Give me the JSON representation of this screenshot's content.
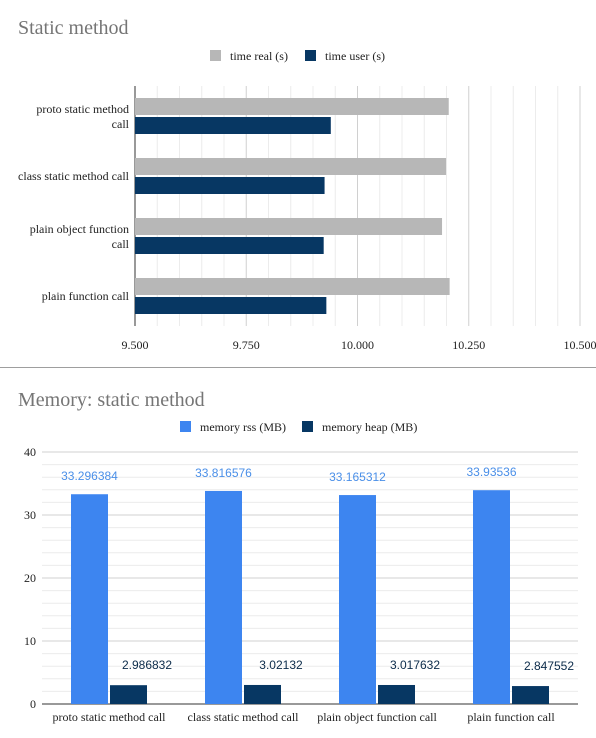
{
  "chart_data": [
    {
      "type": "bar",
      "orientation": "horizontal",
      "title": "Static method",
      "categories": [
        "proto static method call",
        "class static method call",
        "plain object function call",
        "plain function call"
      ],
      "category_label_lines": [
        [
          "proto static method",
          "call"
        ],
        [
          "class static method call"
        ],
        [
          "plain object function",
          "call"
        ],
        [
          "plain function call"
        ]
      ],
      "series": [
        {
          "name": "time real (s)",
          "color": "#b7b7b7",
          "values": [
            10.205,
            10.199,
            10.19,
            10.207
          ]
        },
        {
          "name": "time user (s)",
          "color": "#073763",
          "values": [
            9.94,
            9.926,
            9.924,
            9.93
          ]
        }
      ],
      "xlim": [
        9.5,
        10.5
      ],
      "ticks": [
        9.5,
        9.75,
        10.0,
        10.25,
        10.5
      ],
      "tick_labels": [
        "9.500",
        "9.750",
        "10.000",
        "10.250",
        "10.500"
      ],
      "legend_position": "top",
      "grid": true
    },
    {
      "type": "bar",
      "orientation": "vertical",
      "title": "Memory: static method",
      "categories": [
        "proto static method call",
        "class static method call",
        "plain object function call",
        "plain function call"
      ],
      "series": [
        {
          "name": "memory rss (MB)",
          "color": "#3d85f0",
          "values": [
            33.296384,
            33.816576,
            33.165312,
            33.93536
          ],
          "labels": [
            "33.296384",
            "33.816576",
            "33.165312",
            "33.93536"
          ]
        },
        {
          "name": "memory heap (MB)",
          "color": "#073763",
          "values": [
            2.986832,
            3.02132,
            3.017632,
            2.847552
          ],
          "labels": [
            "2.986832",
            "3.02132",
            "3.017632",
            "2.847552"
          ]
        }
      ],
      "ylim": [
        0,
        40
      ],
      "ticks": [
        0,
        10,
        20,
        30,
        40
      ],
      "tick_labels": [
        "0",
        "10",
        "20",
        "30",
        "40"
      ],
      "legend_position": "top",
      "grid": true
    }
  ]
}
